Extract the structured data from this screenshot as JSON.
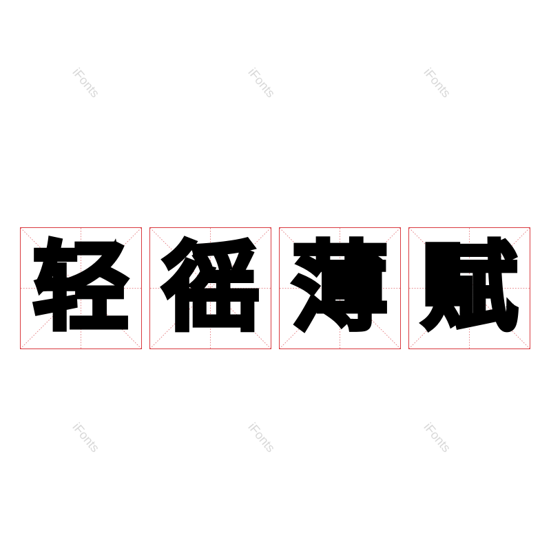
{
  "characters": [
    "轻",
    "徭",
    "薄",
    "赋"
  ],
  "watermark": "iFonts",
  "colors": {
    "grid": "#d9393f",
    "glyph": "#000000",
    "watermark": "#d8d8d8"
  }
}
